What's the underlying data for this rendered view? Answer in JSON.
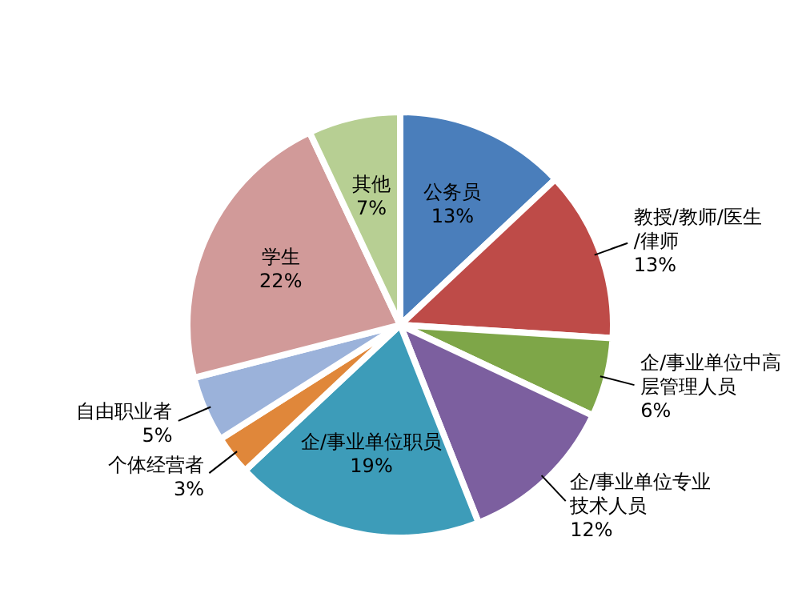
{
  "chart_data": {
    "type": "pie",
    "categories": [
      "公务员",
      "教授/教师/医生/律师",
      "企/事业单位中高层管理人员",
      "企/事业单位专业技术人员",
      "企/事业单位职员",
      "个体经营者",
      "自由职业者",
      "学生",
      "其他"
    ],
    "values": [
      13,
      13,
      6,
      12,
      19,
      3,
      5,
      22,
      7
    ],
    "value_labels": [
      "13%",
      "13%",
      "6%",
      "12%",
      "19%",
      "3%",
      "5%",
      "22%",
      "7%"
    ],
    "colors": [
      "#4a7ebb",
      "#be4b48",
      "#7ea648",
      "#7c5f9f",
      "#3d9cb9",
      "#e0873a",
      "#9bb2da",
      "#d19a99",
      "#b7cf93"
    ]
  }
}
